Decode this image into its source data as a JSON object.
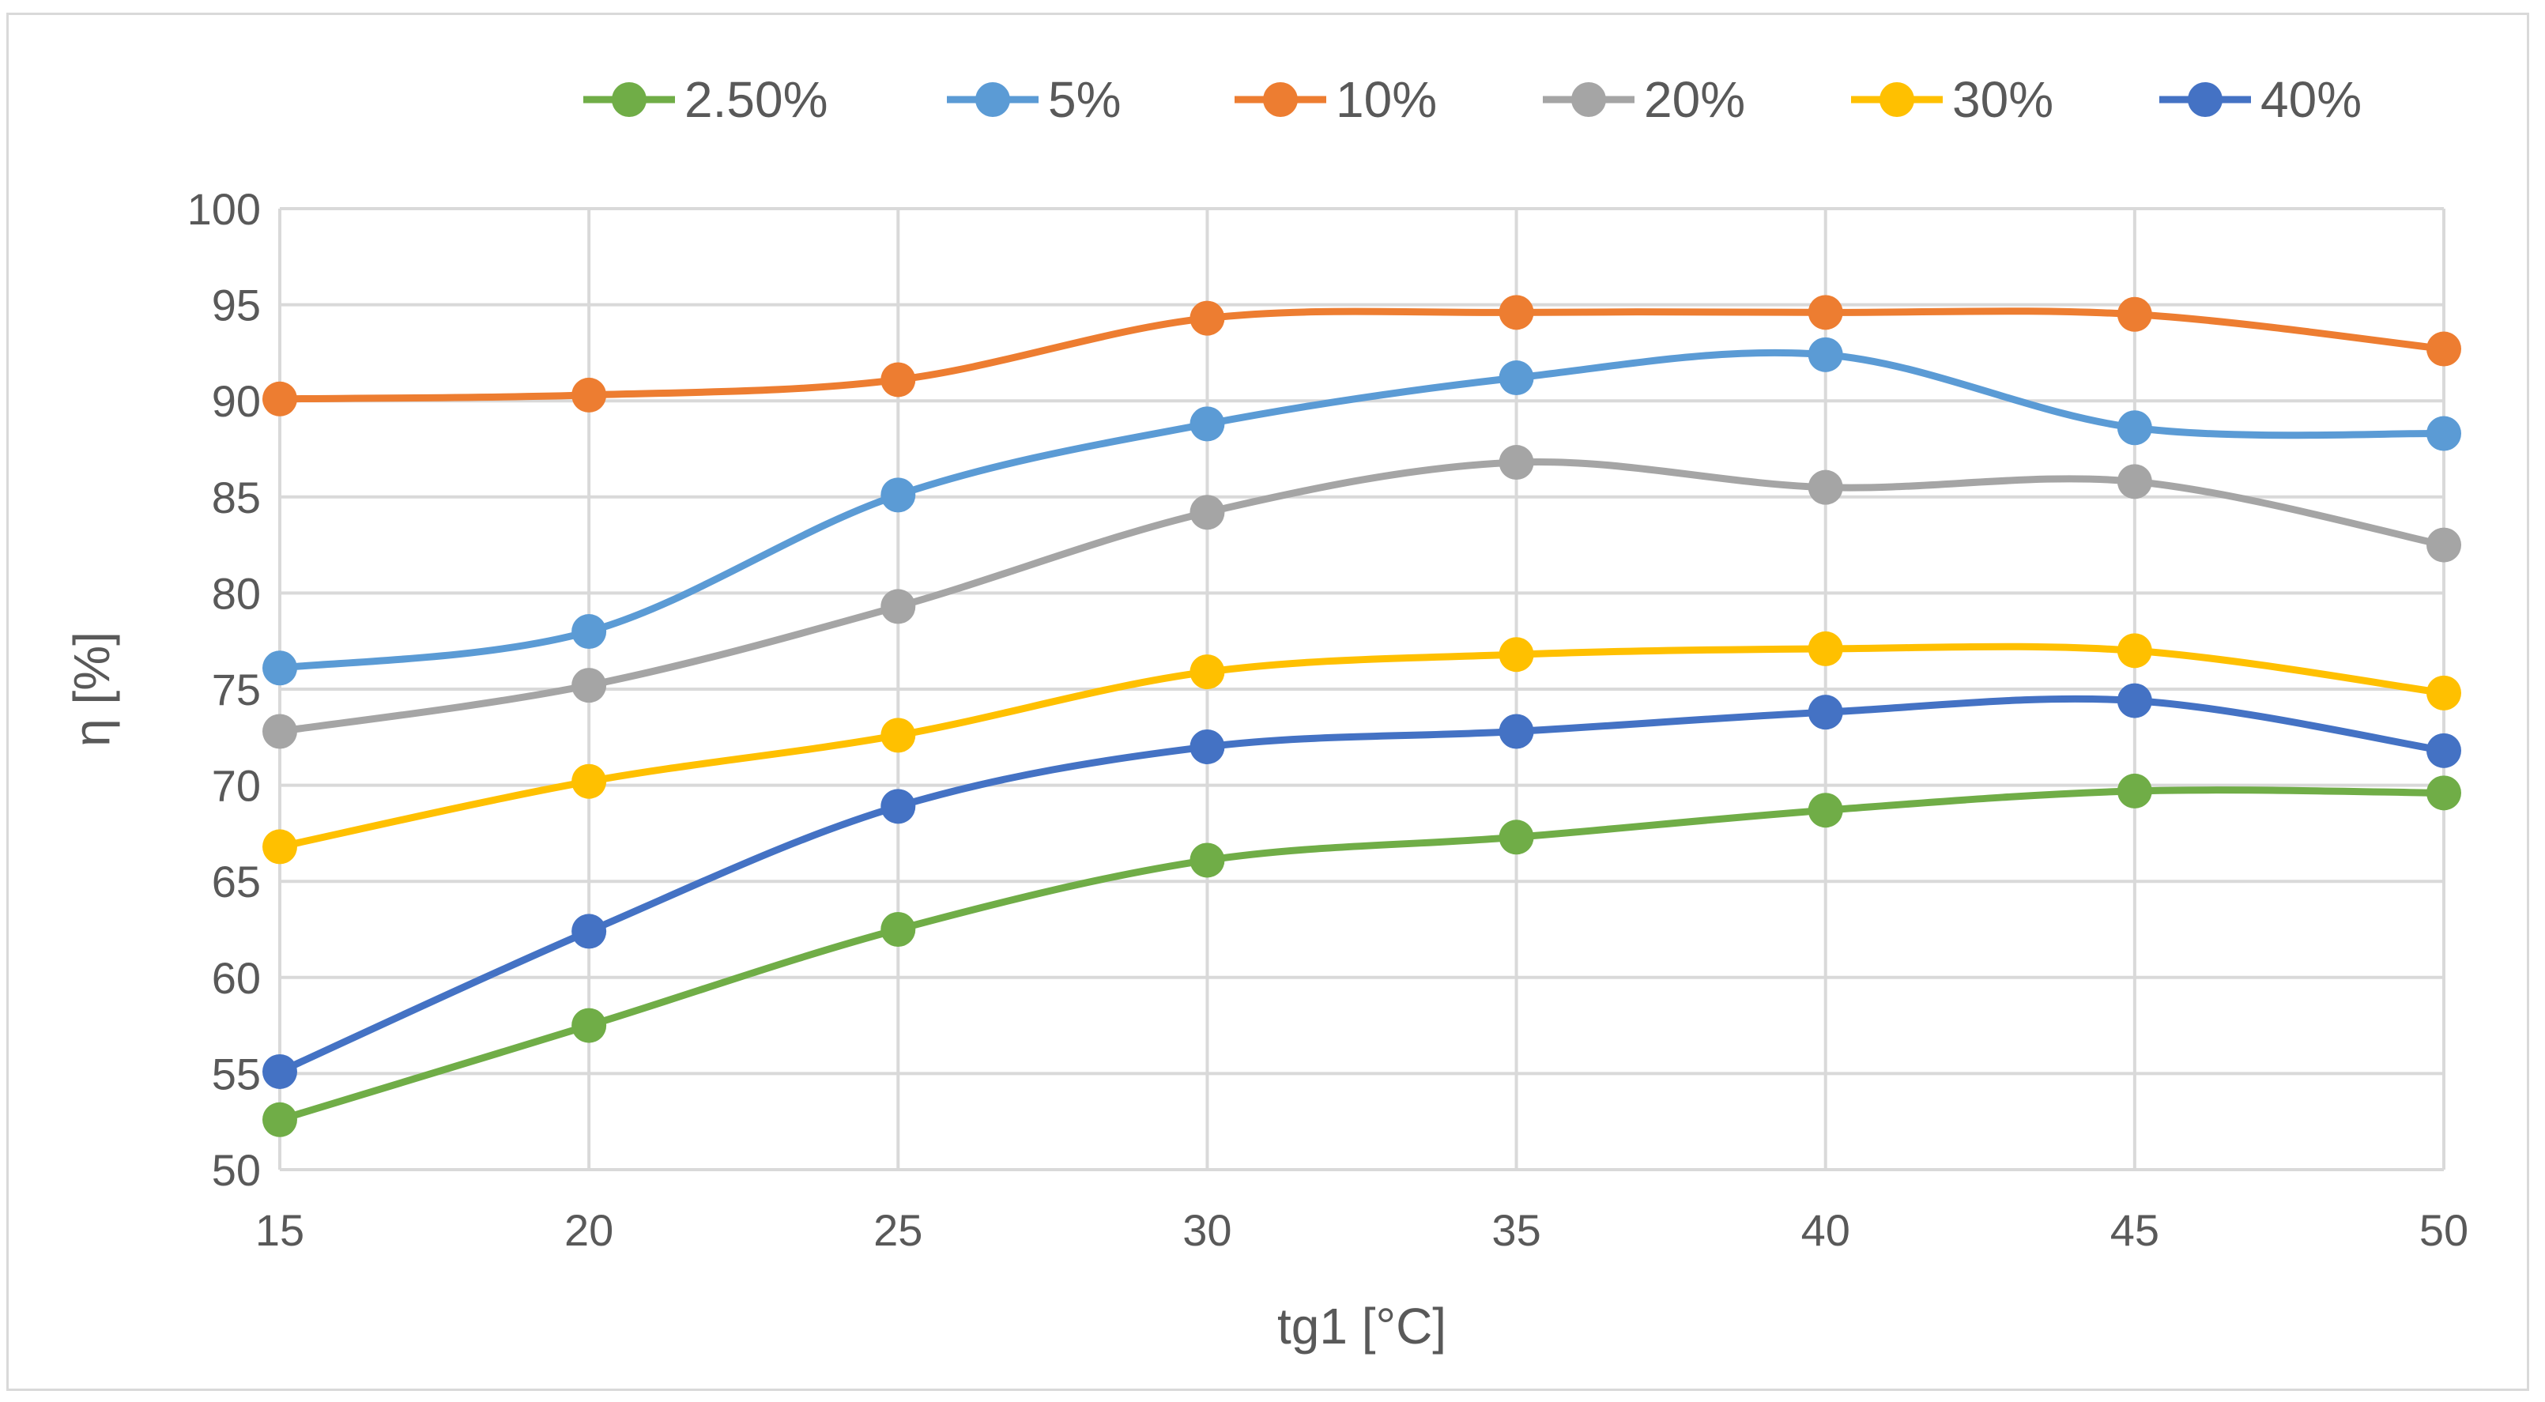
{
  "chart_data": {
    "type": "line",
    "title": "",
    "xlabel": "tg1 [°C]",
    "ylabel": "η [%]",
    "x": [
      15,
      20,
      25,
      30,
      35,
      40,
      45,
      50
    ],
    "xlim": [
      15,
      50
    ],
    "ylim": [
      50,
      100
    ],
    "y_ticks": [
      50,
      55,
      60,
      65,
      70,
      75,
      80,
      85,
      90,
      95,
      100
    ],
    "grid": true,
    "smooth": true,
    "legend_position": "top",
    "series": [
      {
        "name": "2.50%",
        "color": "#70AD47",
        "values": [
          52.6,
          57.5,
          62.5,
          66.1,
          67.3,
          68.7,
          69.7,
          69.6
        ]
      },
      {
        "name": "5%",
        "color": "#5B9BD5",
        "values": [
          76.1,
          78.0,
          85.1,
          88.8,
          91.2,
          92.4,
          88.6,
          88.3
        ]
      },
      {
        "name": "10%",
        "color": "#ED7D31",
        "values": [
          90.1,
          90.3,
          91.1,
          94.3,
          94.6,
          94.6,
          94.5,
          92.7
        ]
      },
      {
        "name": "20%",
        "color": "#A5A5A5",
        "values": [
          72.8,
          75.2,
          79.3,
          84.2,
          86.8,
          85.5,
          85.8,
          82.5
        ]
      },
      {
        "name": "30%",
        "color": "#FFC000",
        "values": [
          66.8,
          70.2,
          72.6,
          75.9,
          76.8,
          77.1,
          77.0,
          74.8
        ]
      },
      {
        "name": "40%",
        "color": "#4472C4",
        "values": [
          55.1,
          62.4,
          68.9,
          72.0,
          72.8,
          73.8,
          74.4,
          71.8
        ]
      }
    ]
  }
}
